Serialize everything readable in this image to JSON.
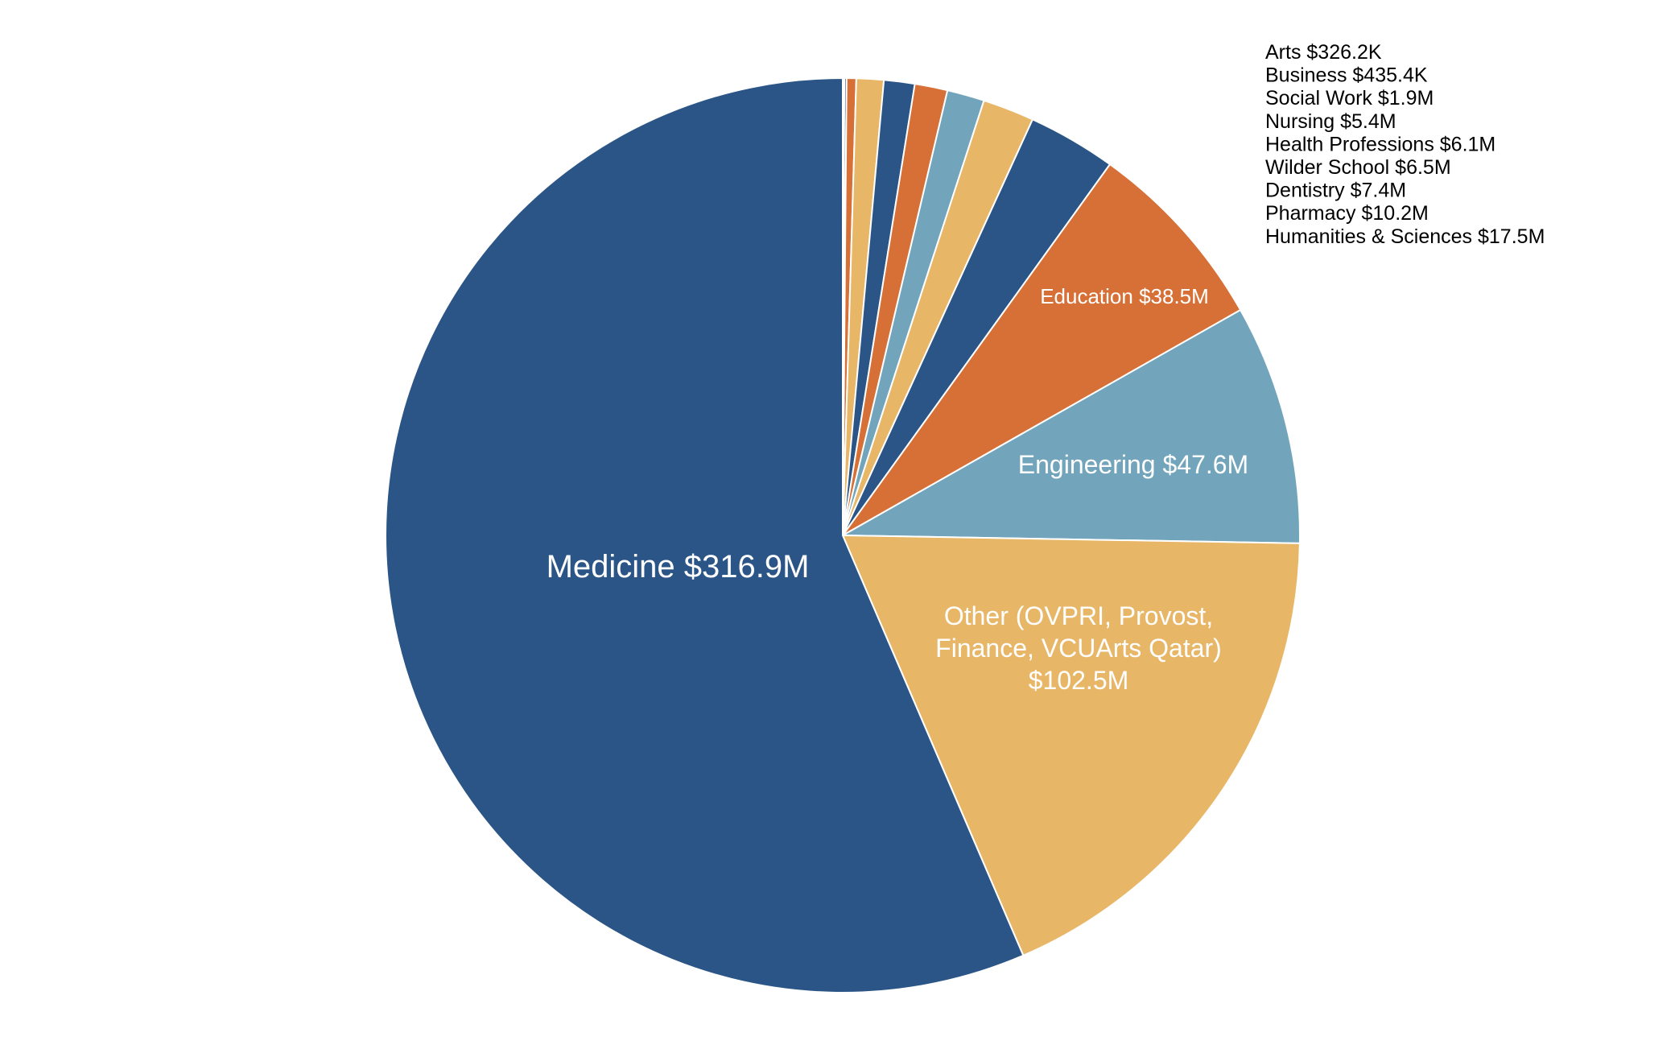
{
  "chart_data": {
    "type": "pie",
    "title": "",
    "start": "top",
    "direction": "clockwise",
    "slices": [
      {
        "label": "Arts",
        "value": 0.3262,
        "display": "$326.2K",
        "color": "#72a5bb"
      },
      {
        "label": "Business",
        "value": 0.4354,
        "display": "$435.4K",
        "color": "#2a5586"
      },
      {
        "label": "Social Work",
        "value": 1.9,
        "display": "$1.9M",
        "color": "#d67036"
      },
      {
        "label": "Nursing",
        "value": 5.4,
        "display": "$5.4M",
        "color": "#e8b667"
      },
      {
        "label": "Health Professions",
        "value": 6.1,
        "display": "$6.1M",
        "color": "#2a5586"
      },
      {
        "label": "Wilder School",
        "value": 6.5,
        "display": "$6.5M",
        "color": "#d67036"
      },
      {
        "label": "Dentistry",
        "value": 7.4,
        "display": "$7.4M",
        "color": "#72a5bb"
      },
      {
        "label": "Pharmacy",
        "value": 10.2,
        "display": "$10.2M",
        "color": "#e8b667"
      },
      {
        "label": "Humanities & Sciences",
        "value": 17.5,
        "display": "$17.5M",
        "color": "#2a5586"
      },
      {
        "label": "Education",
        "value": 38.5,
        "display": "$38.5M",
        "color": "#d67036"
      },
      {
        "label": "Engineering",
        "value": 47.6,
        "display": "$47.6M",
        "color": "#72a5bb"
      },
      {
        "label": "Other (OVPRI, Provost, Finance, VCUArts Qatar)",
        "value": 102.5,
        "display": "$102.5M",
        "color": "#e8b667"
      },
      {
        "label": "Medicine",
        "value": 316.9,
        "display": "$316.9M",
        "color": "#2a5586"
      }
    ],
    "inside_labels": {
      "medicine": "Medicine $316.9M",
      "engineering": "Engineering $47.6M",
      "education": "Education $38.5M",
      "other_lines": [
        "Other (OVPRI, Provost,",
        "Finance, VCUArts Qatar)",
        "$102.5M"
      ]
    },
    "outside_labels": [
      "Arts $326.2K",
      "Business $435.4K",
      "Social Work $1.9M",
      "Nursing $5.4M",
      "Health Professions $6.1M",
      "Wilder School $6.5M",
      "Dentistry $7.4M",
      "Pharmacy $10.2M",
      "Humanities & Sciences $17.5M"
    ]
  }
}
